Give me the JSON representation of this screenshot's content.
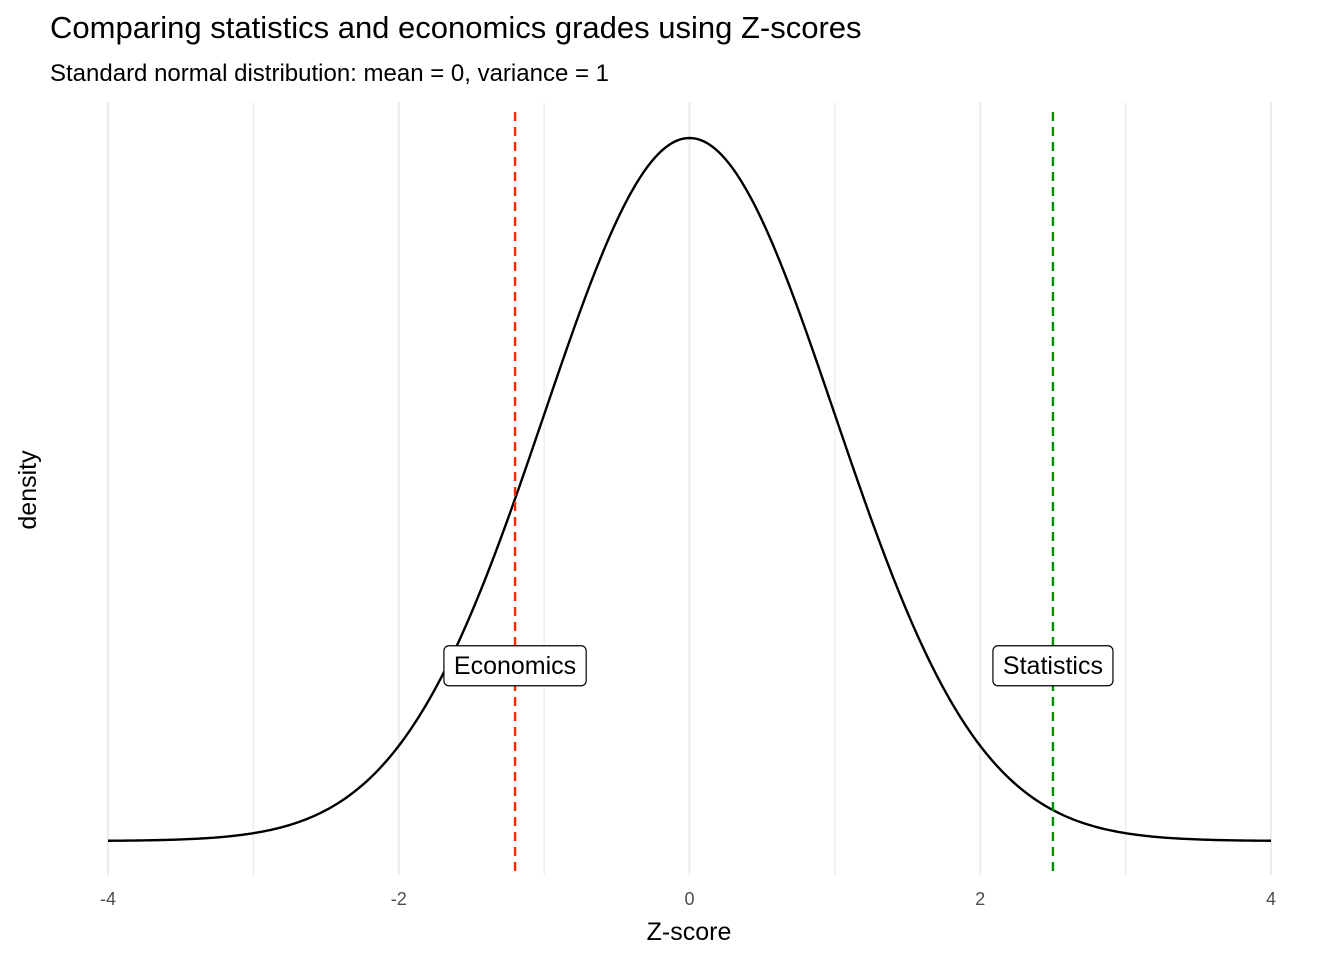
{
  "chart_data": {
    "type": "line",
    "title": "Comparing statistics and economics grades using Z-scores",
    "subtitle": "Standard normal distribution: mean = 0, variance = 1",
    "xlabel": "Z-score",
    "ylabel": "density",
    "xlim": [
      -4,
      4
    ],
    "ylim": [
      0,
      0.4
    ],
    "x_ticks": [
      {
        "value": -4,
        "label": "-4"
      },
      {
        "value": -2,
        "label": "-2"
      },
      {
        "value": 0,
        "label": "0"
      },
      {
        "value": 2,
        "label": "2"
      },
      {
        "value": 4,
        "label": "4"
      }
    ],
    "grid": {
      "vertical_major": true,
      "vertical_minor": true,
      "horizontal": false
    },
    "series": [
      {
        "distribution": "normal",
        "mean": 0,
        "sd": 1,
        "color": "#000000"
      }
    ],
    "reference_lines": [
      {
        "x": -1.2,
        "color": "#ff2600",
        "label": "Economics"
      },
      {
        "x": 2.5,
        "color": "#008f00",
        "label": "Statistics"
      }
    ],
    "label_y": 0.1
  }
}
